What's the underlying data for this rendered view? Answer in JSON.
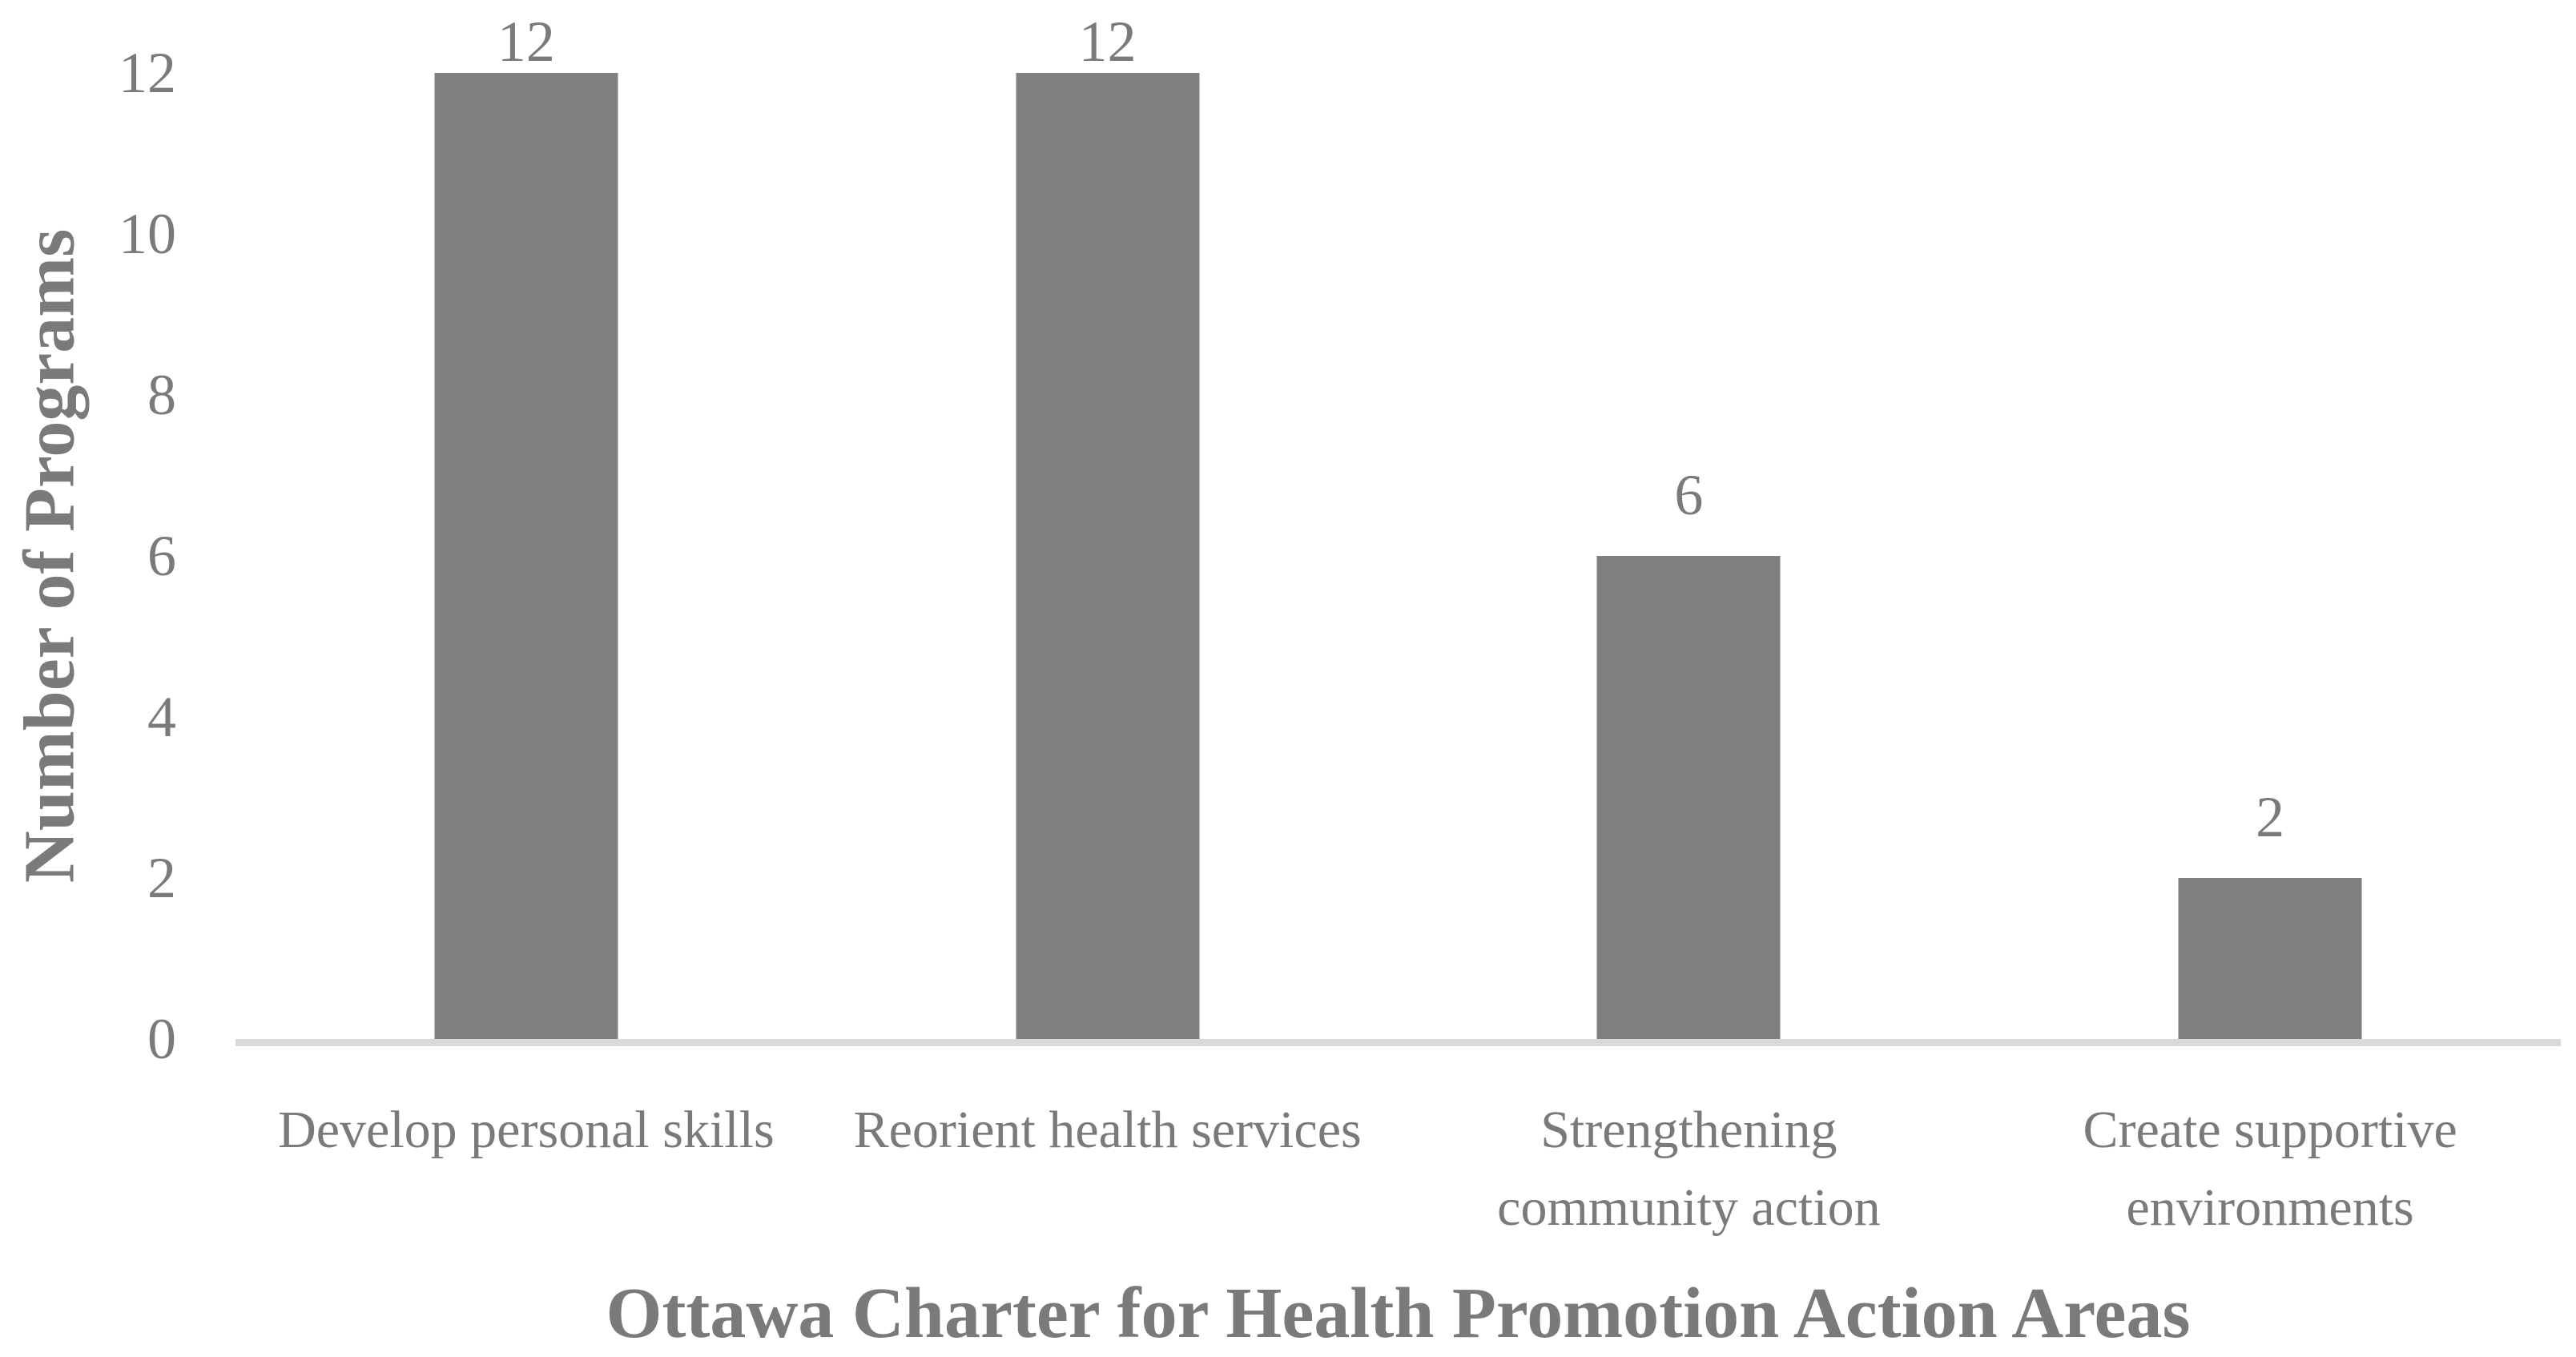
{
  "chart_data": {
    "type": "bar",
    "title": "",
    "categories": [
      "Develop personal skills",
      "Reorient health services",
      "Strengthening community action",
      "Create supportive environments"
    ],
    "values": [
      12,
      12,
      6,
      2
    ],
    "data_labels": [
      "12",
      "12",
      "6",
      "2"
    ],
    "xlabel": "Ottawa Charter for Health Promotion Action Areas",
    "ylabel": "Number of Programs",
    "ylim": [
      0,
      12
    ],
    "yticks": [
      0,
      2,
      4,
      6,
      8,
      10,
      12
    ],
    "grid": false,
    "legend": false,
    "bar_color": "#7F7F7F",
    "text_color": "#7A7A7A",
    "axis_line_color": "#D9D9D9",
    "background_color": "#FFFFFF"
  }
}
